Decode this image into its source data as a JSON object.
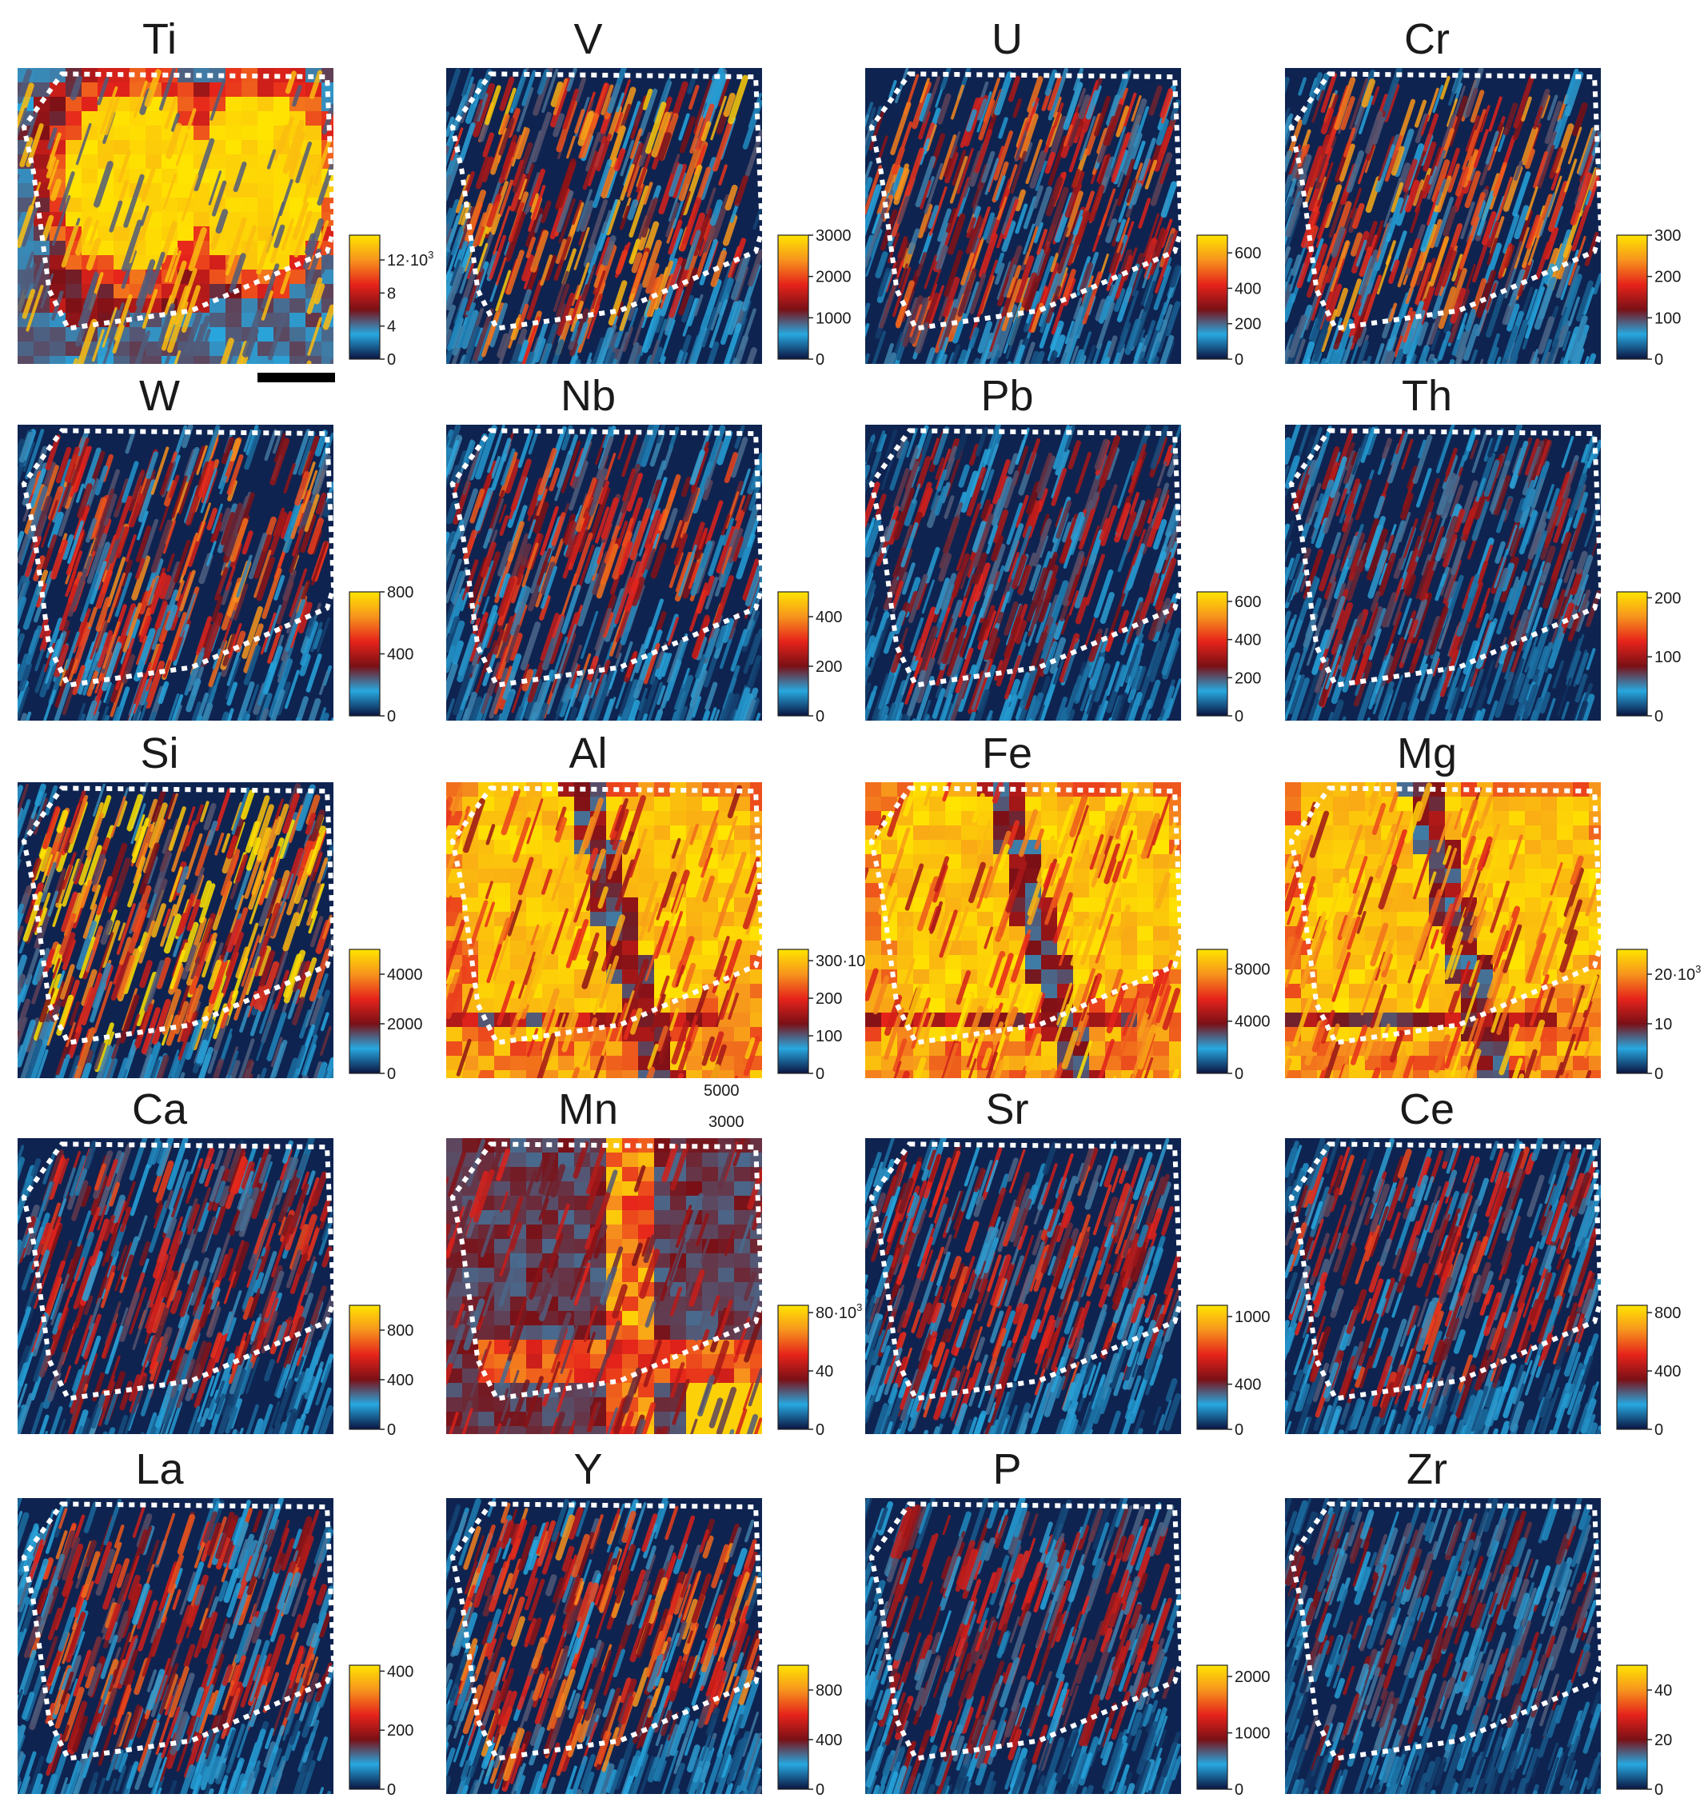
{
  "figure": {
    "colormap": [
      "#0b1440",
      "#27a8e0",
      "#7a1016",
      "#e6231b",
      "#f7941d",
      "#ffe500"
    ],
    "boundary_color": "#ffffff",
    "scale_bar": true,
    "stray_labels": [
      "5000",
      "3000"
    ]
  },
  "chart_data": [
    {
      "type": "heatmap",
      "title": "Ti",
      "colorbar": {
        "max": 15,
        "ticks": [
          {
            "label": "0",
            "v": 0
          },
          {
            "label": "4",
            "v": 4
          },
          {
            "label": "8",
            "v": 8
          },
          {
            "label": "12·10",
            "v": 12,
            "sup": "3"
          }
        ]
      },
      "texture": "blob",
      "strength": 1.0,
      "seed": 11
    },
    {
      "type": "heatmap",
      "title": "V",
      "colorbar": {
        "max": 3000,
        "ticks": [
          {
            "label": "0",
            "v": 0
          },
          {
            "label": "1000",
            "v": 1000
          },
          {
            "label": "2000",
            "v": 2000
          },
          {
            "label": "3000",
            "v": 3000
          }
        ]
      },
      "texture": "streak",
      "strength": 0.7,
      "seed": 23
    },
    {
      "type": "heatmap",
      "title": "U",
      "colorbar": {
        "max": 700,
        "ticks": [
          {
            "label": "0",
            "v": 0
          },
          {
            "label": "200",
            "v": 200
          },
          {
            "label": "400",
            "v": 400
          },
          {
            "label": "600",
            "v": 600
          }
        ]
      },
      "texture": "streak",
      "strength": 0.6,
      "seed": 37
    },
    {
      "type": "heatmap",
      "title": "Cr",
      "colorbar": {
        "max": 300,
        "ticks": [
          {
            "label": "0",
            "v": 0
          },
          {
            "label": "100",
            "v": 100
          },
          {
            "label": "200",
            "v": 200
          },
          {
            "label": "300",
            "v": 300
          }
        ]
      },
      "texture": "streak",
      "strength": 0.65,
      "seed": 41
    },
    {
      "type": "heatmap",
      "title": "W",
      "colorbar": {
        "max": 800,
        "ticks": [
          {
            "label": "0",
            "v": 0
          },
          {
            "label": "400",
            "v": 400
          },
          {
            "label": "800",
            "v": 800
          }
        ]
      },
      "texture": "streak",
      "strength": 0.6,
      "seed": 53
    },
    {
      "type": "heatmap",
      "title": "Nb",
      "colorbar": {
        "max": 500,
        "ticks": [
          {
            "label": "0",
            "v": 0
          },
          {
            "label": "200",
            "v": 200
          },
          {
            "label": "400",
            "v": 400
          }
        ]
      },
      "texture": "streak",
      "strength": 0.55,
      "seed": 61
    },
    {
      "type": "heatmap",
      "title": "Pb",
      "colorbar": {
        "max": 650,
        "ticks": [
          {
            "label": "0",
            "v": 0
          },
          {
            "label": "200",
            "v": 200
          },
          {
            "label": "400",
            "v": 400
          },
          {
            "label": "600",
            "v": 600
          }
        ]
      },
      "texture": "streak",
      "strength": 0.45,
      "seed": 71
    },
    {
      "type": "heatmap",
      "title": "Th",
      "colorbar": {
        "max": 210,
        "ticks": [
          {
            "label": "0",
            "v": 0
          },
          {
            "label": "100",
            "v": 100
          },
          {
            "label": "200",
            "v": 200
          }
        ]
      },
      "texture": "streak",
      "strength": 0.4,
      "seed": 83
    },
    {
      "type": "heatmap",
      "title": "Si",
      "colorbar": {
        "max": 5000,
        "ticks": [
          {
            "label": "0",
            "v": 0
          },
          {
            "label": "2000",
            "v": 2000
          },
          {
            "label": "4000",
            "v": 4000
          }
        ]
      },
      "texture": "streak",
      "strength": 0.8,
      "seed": 97
    },
    {
      "type": "heatmap",
      "title": "Al",
      "colorbar": {
        "max": 330,
        "ticks": [
          {
            "label": "0",
            "v": 0
          },
          {
            "label": "100",
            "v": 100
          },
          {
            "label": "200",
            "v": 200
          },
          {
            "label": "300·10",
            "v": 300,
            "sup": "3"
          }
        ]
      },
      "texture": "band",
      "strength": 0.85,
      "seed": 101
    },
    {
      "type": "heatmap",
      "title": "Fe",
      "colorbar": {
        "max": 9500,
        "ticks": [
          {
            "label": "0",
            "v": 0
          },
          {
            "label": "4000",
            "v": 4000
          },
          {
            "label": "8000",
            "v": 8000
          }
        ]
      },
      "texture": "band",
      "strength": 0.95,
      "seed": 113
    },
    {
      "type": "heatmap",
      "title": "Mg",
      "colorbar": {
        "max": 25,
        "ticks": [
          {
            "label": "0",
            "v": 0
          },
          {
            "label": "10",
            "v": 10
          },
          {
            "label": "20·10",
            "v": 20,
            "sup": "3"
          }
        ]
      },
      "texture": "band",
      "strength": 0.9,
      "seed": 127
    },
    {
      "type": "heatmap",
      "title": "Ca",
      "colorbar": {
        "max": 1000,
        "ticks": [
          {
            "label": "0",
            "v": 0
          },
          {
            "label": "400",
            "v": 400
          },
          {
            "label": "800",
            "v": 800
          }
        ]
      },
      "texture": "streak",
      "strength": 0.5,
      "seed": 131
    },
    {
      "type": "heatmap",
      "title": "Mn",
      "colorbar": {
        "max": 85,
        "ticks": [
          {
            "label": "0",
            "v": 0
          },
          {
            "label": "40",
            "v": 40
          },
          {
            "label": "80·10",
            "v": 80,
            "sup": "3"
          }
        ]
      },
      "texture": "mn",
      "strength": 0.55,
      "seed": 139
    },
    {
      "type": "heatmap",
      "title": "Sr",
      "colorbar": {
        "max": 1100,
        "ticks": [
          {
            "label": "0",
            "v": 0
          },
          {
            "label": "400",
            "v": 400
          },
          {
            "label": "1000",
            "v": 1000
          }
        ]
      },
      "texture": "streak",
      "strength": 0.5,
      "seed": 149
    },
    {
      "type": "heatmap",
      "title": "Ce",
      "colorbar": {
        "max": 850,
        "ticks": [
          {
            "label": "0",
            "v": 0
          },
          {
            "label": "400",
            "v": 400
          },
          {
            "label": "800",
            "v": 800
          }
        ]
      },
      "texture": "streak",
      "strength": 0.5,
      "seed": 151
    },
    {
      "type": "heatmap",
      "title": "La",
      "colorbar": {
        "max": 420,
        "ticks": [
          {
            "label": "0",
            "v": 0
          },
          {
            "label": "200",
            "v": 200
          },
          {
            "label": "400",
            "v": 400
          }
        ]
      },
      "texture": "streak",
      "strength": 0.55,
      "seed": 163
    },
    {
      "type": "heatmap",
      "title": "Y",
      "colorbar": {
        "max": 1000,
        "ticks": [
          {
            "label": "0",
            "v": 0
          },
          {
            "label": "400",
            "v": 400
          },
          {
            "label": "800",
            "v": 800
          }
        ]
      },
      "texture": "streak",
      "strength": 0.6,
      "seed": 173
    },
    {
      "type": "heatmap",
      "title": "P",
      "colorbar": {
        "max": 2200,
        "ticks": [
          {
            "label": "0",
            "v": 0
          },
          {
            "label": "1000",
            "v": 1000
          },
          {
            "label": "2000",
            "v": 2000
          }
        ]
      },
      "texture": "streak",
      "strength": 0.45,
      "seed": 181
    },
    {
      "type": "heatmap",
      "title": "Zr",
      "colorbar": {
        "max": 50,
        "ticks": [
          {
            "label": "0",
            "v": 0
          },
          {
            "label": "20",
            "v": 20
          },
          {
            "label": "40",
            "v": 40
          }
        ]
      },
      "texture": "streak",
      "strength": 0.35,
      "seed": 191
    }
  ]
}
